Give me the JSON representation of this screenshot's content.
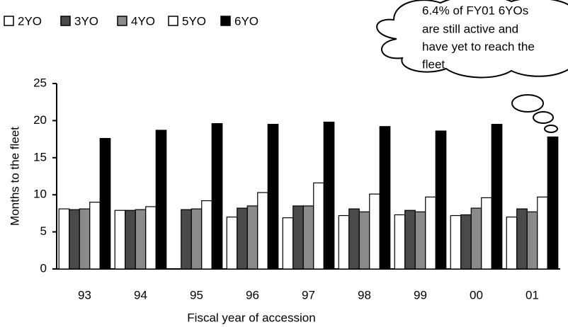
{
  "chart_data": {
    "type": "bar",
    "annotation": [
      "6.4% of FY01 6YOs",
      "are still active and",
      "have yet to reach the",
      "fleet"
    ],
    "x_label": "Fiscal year of accession",
    "y_label": "Months to the fleet",
    "categories": [
      "93",
      "94",
      "95",
      "96",
      "97",
      "98",
      "99",
      "00",
      "01"
    ],
    "series": [
      {
        "name": "2YO",
        "color": "#ffffff",
        "values": [
          8.1,
          7.9,
          null,
          7.0,
          6.9,
          7.2,
          7.3,
          7.2,
          7.0
        ]
      },
      {
        "name": "3YO",
        "color": "#4a4a4a",
        "values": [
          8.0,
          7.9,
          8.0,
          8.2,
          8.5,
          8.1,
          7.9,
          7.3,
          8.1
        ]
      },
      {
        "name": "4YO",
        "color": "#8a8a8a",
        "values": [
          8.1,
          8.0,
          8.1,
          8.5,
          8.5,
          7.7,
          7.7,
          8.2,
          7.7
        ]
      },
      {
        "name": "5YO",
        "color": "#ffffff",
        "values": [
          9.0,
          8.4,
          9.2,
          10.3,
          11.6,
          10.1,
          9.7,
          9.6,
          9.7
        ]
      },
      {
        "name": "6YO",
        "color": "#000000",
        "values": [
          17.6,
          18.7,
          19.6,
          19.5,
          19.8,
          19.2,
          18.6,
          19.5,
          17.8
        ]
      }
    ],
    "ylim": [
      0,
      25
    ],
    "yticks": [
      0,
      5,
      10,
      15,
      20,
      25
    ],
    "grid": false,
    "legend": "top-left"
  }
}
